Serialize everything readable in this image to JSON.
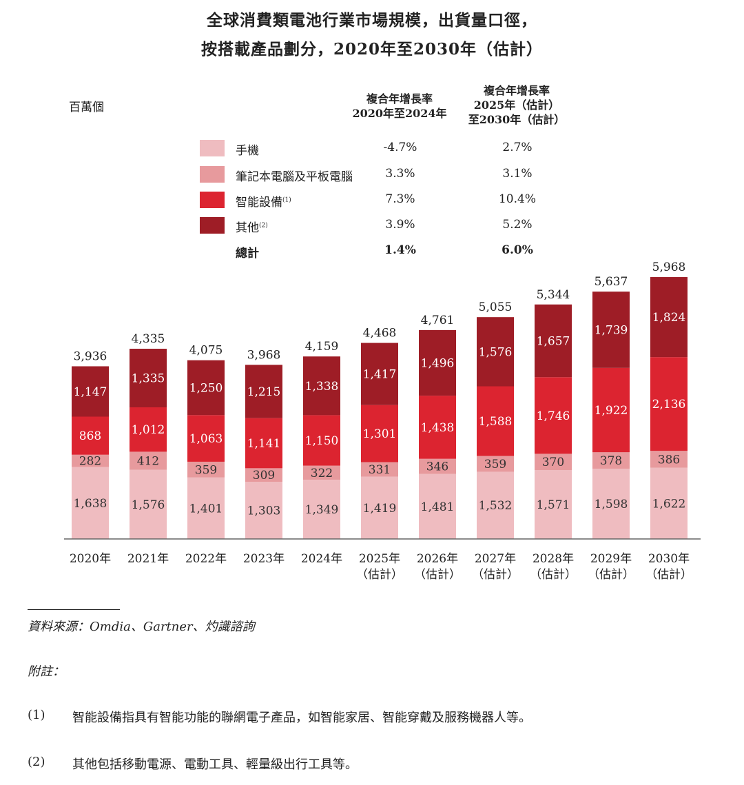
{
  "header": {
    "title_line1": "全球消費類電池行業市場規模，出貨量口徑，",
    "title_line2": "按搭載產品劃分，2020年至2030年（估計）",
    "unit": "百萬個"
  },
  "cagr": {
    "header1": [
      "複合年增長率",
      "2020年至2024年"
    ],
    "header2": [
      "複合年增長率",
      "2025年（估計）",
      "至2030年（估計）"
    ],
    "rows": [
      {
        "label": "手機",
        "note": "",
        "v1": "-4.7%",
        "v2": "2.7%",
        "color": "#efbcc0",
        "swatch": true,
        "bold": false
      },
      {
        "label": "筆記本電腦及平板電腦",
        "note": "",
        "v1": "3.3%",
        "v2": "3.1%",
        "color": "#e79a9d",
        "swatch": true,
        "bold": false
      },
      {
        "label": "智能設備",
        "note": "(1)",
        "v1": "7.3%",
        "v2": "10.4%",
        "color": "#dc2430",
        "swatch": true,
        "bold": false
      },
      {
        "label": "其他",
        "note": "(2)",
        "v1": "3.9%",
        "v2": "5.2%",
        "color": "#9e1d26",
        "swatch": true,
        "bold": false
      },
      {
        "label": "總計",
        "note": "",
        "v1": "1.4%",
        "v2": "6.0%",
        "color": "",
        "swatch": false,
        "bold": true
      }
    ]
  },
  "chart_data": {
    "type": "bar",
    "stacked": true,
    "title": "全球消費類電池行業市場規模，出貨量口徑，按搭載產品劃分，2020年至2030年（估計）",
    "ylabel": "百萬個",
    "ylim": [
      0,
      6000
    ],
    "categories": [
      [
        "2020年"
      ],
      [
        "2021年"
      ],
      [
        "2022年"
      ],
      [
        "2023年"
      ],
      [
        "2024年"
      ],
      [
        "2025年",
        "（估計）"
      ],
      [
        "2026年",
        "（估計）"
      ],
      [
        "2027年",
        "（估計）"
      ],
      [
        "2028年",
        "（估計）"
      ],
      [
        "2029年",
        "（估計）"
      ],
      [
        "2030年",
        "（估計）"
      ]
    ],
    "series": [
      {
        "name": "手機",
        "color": "#efbcc0",
        "label_color": "#333333",
        "values": [
          1638,
          1576,
          1401,
          1303,
          1349,
          1419,
          1481,
          1532,
          1571,
          1598,
          1622
        ],
        "labels": [
          "1,638",
          "1,576",
          "1,401",
          "1,303",
          "1,349",
          "1,419",
          "1,481",
          "1,532",
          "1,571",
          "1,598",
          "1,622"
        ]
      },
      {
        "name": "筆記本電腦及平板電腦",
        "color": "#e79a9d",
        "label_color": "#333333",
        "values": [
          282,
          412,
          359,
          309,
          322,
          331,
          346,
          359,
          370,
          378,
          386
        ],
        "labels": [
          "282",
          "412",
          "359",
          "309",
          "322",
          "331",
          "346",
          "359",
          "370",
          "378",
          "386"
        ]
      },
      {
        "name": "智能設備",
        "color": "#dc2430",
        "label_color": "#ffffff",
        "values": [
          868,
          1012,
          1063,
          1141,
          1150,
          1301,
          1438,
          1588,
          1746,
          1922,
          2136
        ],
        "labels": [
          "868",
          "1,012",
          "1,063",
          "1,141",
          "1,150",
          "1,301",
          "1,438",
          "1,588",
          "1,746",
          "1,922",
          "2,136"
        ]
      },
      {
        "name": "其他",
        "color": "#9e1d26",
        "label_color": "#ffffff",
        "values": [
          1147,
          1335,
          1250,
          1215,
          1338,
          1417,
          1496,
          1576,
          1657,
          1739,
          1824
        ],
        "labels": [
          "1,147",
          "1,335",
          "1,250",
          "1,215",
          "1,338",
          "1,417",
          "1,496",
          "1,576",
          "1,657",
          "1,739",
          "1,824"
        ]
      }
    ],
    "totals": [
      3936,
      4335,
      4075,
      3968,
      4159,
      4468,
      4761,
      5055,
      5344,
      5637,
      5968
    ],
    "total_labels": [
      "3,936",
      "4,335",
      "4,075",
      "3,968",
      "4,159",
      "4,468",
      "4,761",
      "5,055",
      "5,344",
      "5,637",
      "5,968"
    ]
  },
  "footer": {
    "source": "資料來源：Omdia、Gartner、灼識諮詢",
    "notes_header": "附註：",
    "notes": [
      {
        "num": "(1)",
        "text": "智能設備指具有智能功能的聯網電子產品，如智能家居、智能穿戴及服務機器人等。"
      },
      {
        "num": "(2)",
        "text": "其他包括移動電源、電動工具、輕量級出行工具等。"
      }
    ]
  }
}
